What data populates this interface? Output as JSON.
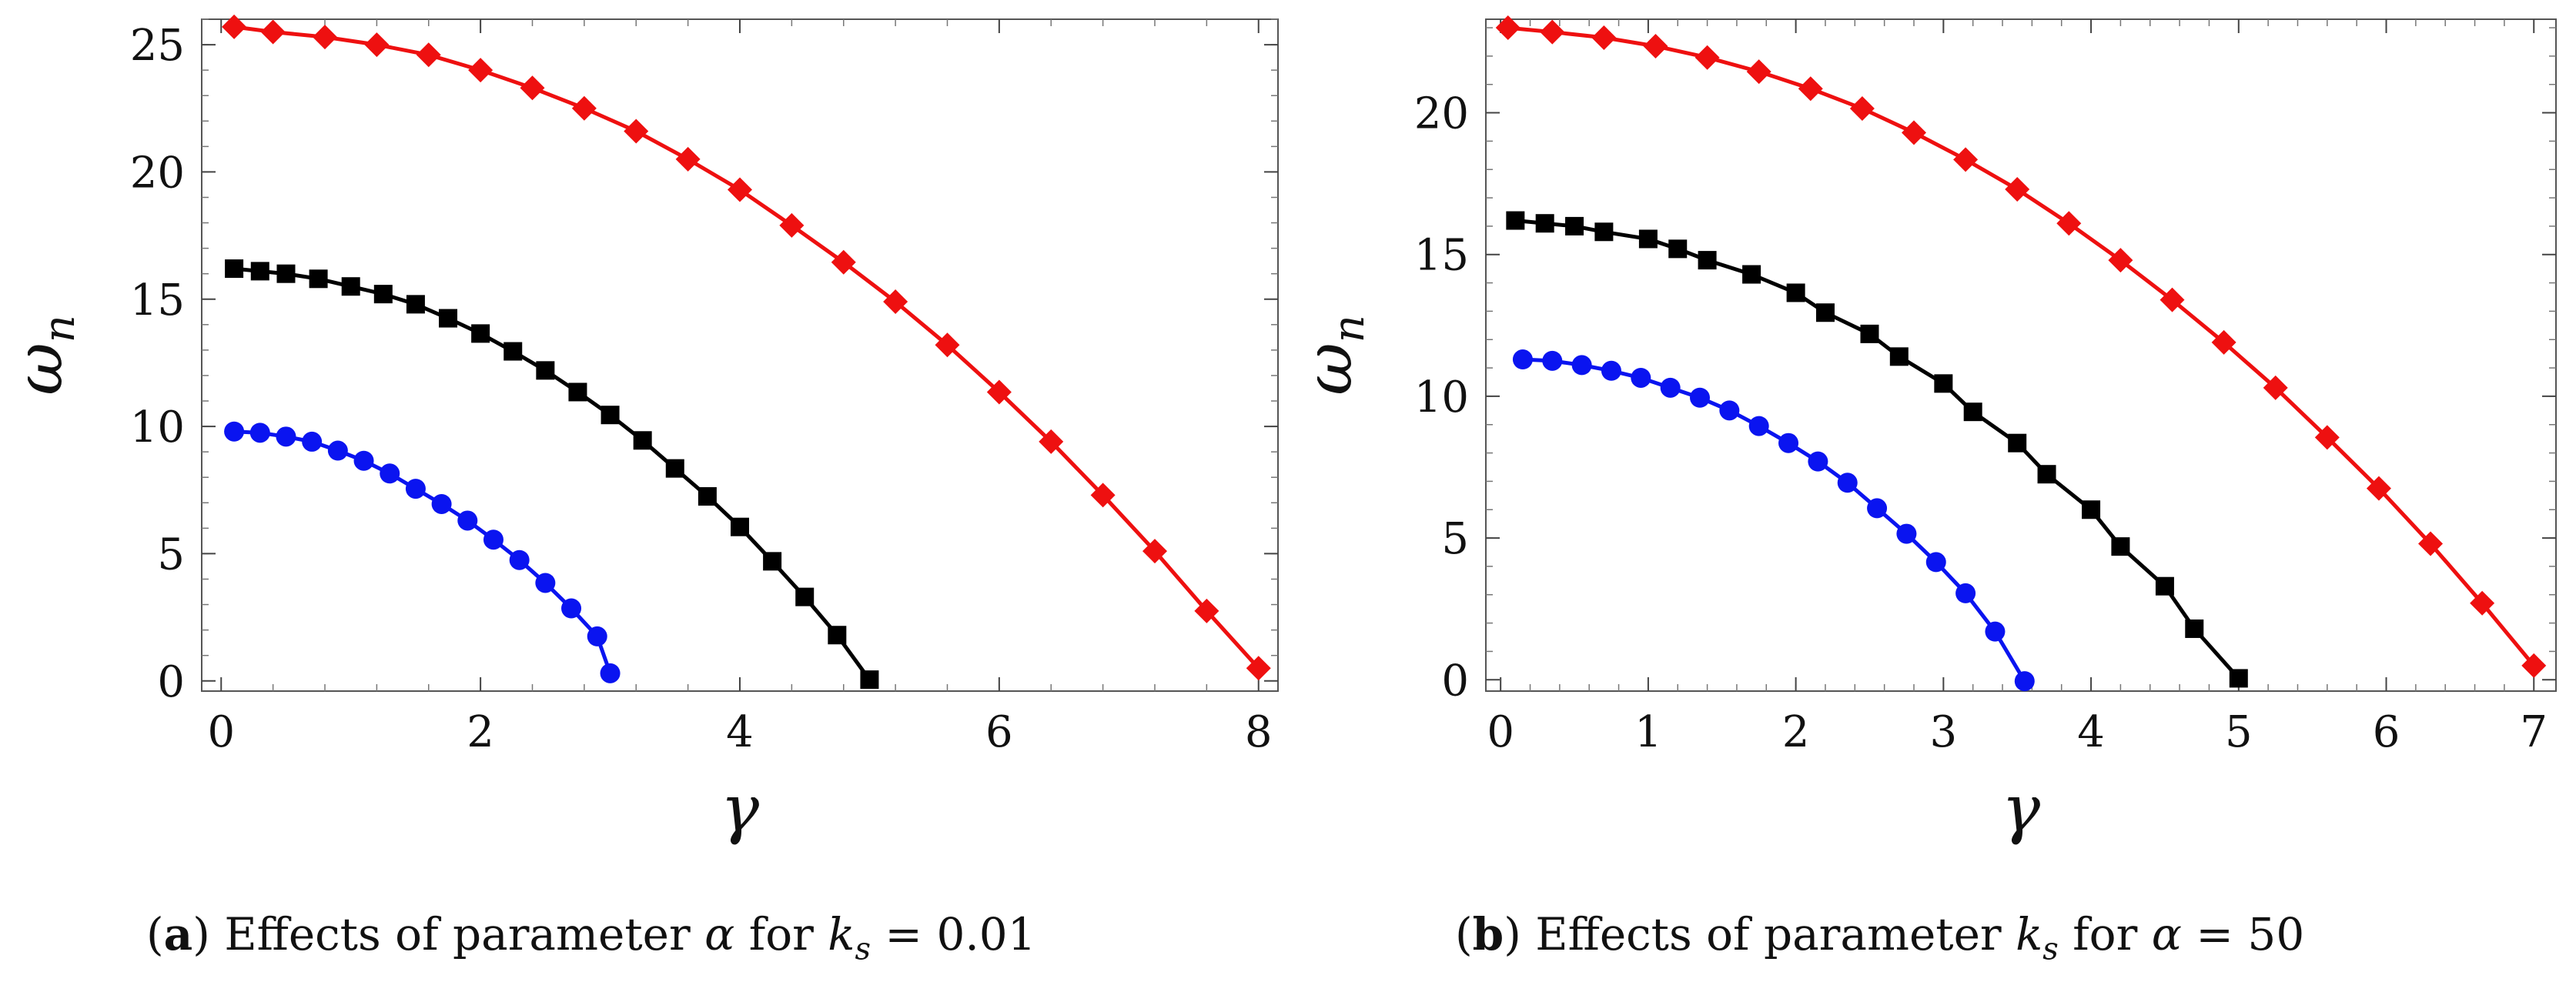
{
  "chart_data": [
    {
      "id": "a",
      "type": "line",
      "xlabel": "γ",
      "ylabel": "ω",
      "ylabel_sub": "n",
      "xlim": [
        -0.15,
        8.15
      ],
      "ylim": [
        -0.4,
        26.0
      ],
      "xticks": [
        0,
        2,
        4,
        6,
        8
      ],
      "yticks": [
        0,
        5,
        10,
        15,
        20,
        25
      ],
      "x_minor_step": 0.4,
      "y_minor_step": 1,
      "caption": {
        "letter": "a",
        "text": "Effects of parameter",
        "param": "α",
        "for_word": "for",
        "rhs_var": "k",
        "rhs_sub": "s",
        "rhs_value": "= 0.01"
      },
      "series": [
        {
          "name": "blue-circles",
          "color": "#0a14f0",
          "marker": "circle",
          "x": [
            0.1,
            0.3,
            0.5,
            0.7,
            0.9,
            1.1,
            1.3,
            1.5,
            1.7,
            1.9,
            2.1,
            2.3,
            2.5,
            2.7,
            2.9,
            3.0
          ],
          "y": [
            9.8,
            9.75,
            9.6,
            9.4,
            9.05,
            8.65,
            8.15,
            7.55,
            6.95,
            6.3,
            5.55,
            4.75,
            3.85,
            2.85,
            1.75,
            0.3
          ]
        },
        {
          "name": "black-squares",
          "color": "#000000",
          "marker": "square",
          "x": [
            0.1,
            0.3,
            0.5,
            0.75,
            1.0,
            1.25,
            1.5,
            1.75,
            2.0,
            2.25,
            2.5,
            2.75,
            3.0,
            3.25,
            3.5,
            3.75,
            4.0,
            4.25,
            4.5,
            4.75,
            5.0
          ],
          "y": [
            16.2,
            16.1,
            16.0,
            15.8,
            15.5,
            15.2,
            14.8,
            14.25,
            13.65,
            12.95,
            12.2,
            11.35,
            10.45,
            9.45,
            8.35,
            7.25,
            6.05,
            4.7,
            3.3,
            1.8,
            0.05
          ]
        },
        {
          "name": "red-diamonds",
          "color": "#ee1010",
          "marker": "diamond",
          "x": [
            0.1,
            0.4,
            0.8,
            1.2,
            1.6,
            2.0,
            2.4,
            2.8,
            3.2,
            3.6,
            4.0,
            4.4,
            4.8,
            5.2,
            5.6,
            6.0,
            6.4,
            6.8,
            7.2,
            7.6,
            8.0
          ],
          "y": [
            25.7,
            25.5,
            25.3,
            25.0,
            24.6,
            24.0,
            23.3,
            22.5,
            21.6,
            20.5,
            19.3,
            17.9,
            16.45,
            14.9,
            13.2,
            11.35,
            9.4,
            7.3,
            5.1,
            2.75,
            0.5
          ]
        }
      ]
    },
    {
      "id": "b",
      "type": "line",
      "xlabel": "γ",
      "ylabel": "ω",
      "ylabel_sub": "n",
      "xlim": [
        -0.1,
        7.15
      ],
      "ylim": [
        -0.4,
        23.3
      ],
      "xticks": [
        0,
        1,
        2,
        3,
        4,
        5,
        6,
        7
      ],
      "yticks": [
        0,
        5,
        10,
        15,
        20
      ],
      "x_minor_step": 0.2,
      "y_minor_step": 1,
      "caption": {
        "letter": "b",
        "text": "Effects of parameter",
        "param_var": "k",
        "param_sub": "s",
        "for_word": "for",
        "rhs_var": "α",
        "rhs_value": "= 50"
      },
      "series": [
        {
          "name": "blue-circles",
          "color": "#0a14f0",
          "marker": "circle",
          "x": [
            0.15,
            0.35,
            0.55,
            0.75,
            0.95,
            1.15,
            1.35,
            1.55,
            1.75,
            1.95,
            2.15,
            2.35,
            2.55,
            2.75,
            2.95,
            3.15,
            3.35,
            3.55
          ],
          "y": [
            11.3,
            11.25,
            11.1,
            10.9,
            10.65,
            10.3,
            9.95,
            9.5,
            8.95,
            8.35,
            7.7,
            6.95,
            6.05,
            5.15,
            4.15,
            3.05,
            1.7,
            -0.05
          ]
        },
        {
          "name": "black-squares",
          "color": "#000000",
          "marker": "square",
          "x": [
            0.1,
            0.3,
            0.5,
            0.7,
            1.0,
            1.2,
            1.4,
            1.7,
            2.0,
            2.2,
            2.5,
            2.7,
            3.0,
            3.2,
            3.5,
            3.7,
            4.0,
            4.2,
            4.5,
            4.7,
            5.0
          ],
          "y": [
            16.2,
            16.1,
            16.0,
            15.8,
            15.55,
            15.2,
            14.8,
            14.3,
            13.65,
            12.95,
            12.2,
            11.4,
            10.45,
            9.45,
            8.35,
            7.25,
            6.0,
            4.7,
            3.3,
            1.8,
            0.05
          ]
        },
        {
          "name": "red-diamonds",
          "color": "#ee1010",
          "marker": "diamond",
          "x": [
            0.05,
            0.35,
            0.7,
            1.05,
            1.4,
            1.75,
            2.1,
            2.45,
            2.8,
            3.15,
            3.5,
            3.85,
            4.2,
            4.55,
            4.9,
            5.25,
            5.6,
            5.95,
            6.3,
            6.65,
            7.0
          ],
          "y": [
            23.0,
            22.85,
            22.65,
            22.35,
            21.95,
            21.45,
            20.85,
            20.15,
            19.3,
            18.35,
            17.3,
            16.1,
            14.8,
            13.4,
            11.9,
            10.3,
            8.55,
            6.75,
            4.8,
            2.7,
            0.5
          ]
        }
      ]
    }
  ]
}
